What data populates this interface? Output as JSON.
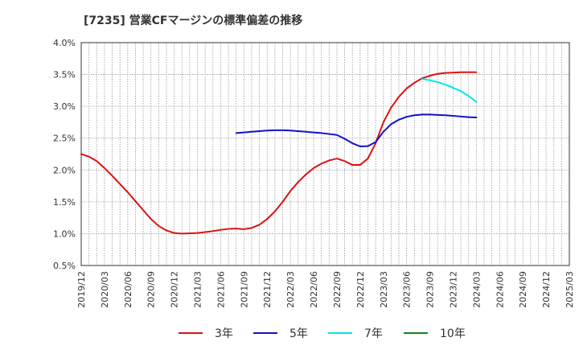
{
  "chart_data": {
    "type": "line",
    "title": "[7235]  営業CFマージンの標準偏差の推移",
    "xlabel": "",
    "ylabel": "",
    "ylim": [
      0.5,
      4.0
    ],
    "y_ticks": [
      "0.5%",
      "1.0%",
      "1.5%",
      "2.0%",
      "2.5%",
      "3.0%",
      "3.5%",
      "4.0%"
    ],
    "x_ticks": [
      "2019/12",
      "2020/03",
      "2020/06",
      "2020/09",
      "2020/12",
      "2021/03",
      "2021/06",
      "2021/09",
      "2021/12",
      "2022/03",
      "2022/06",
      "2022/09",
      "2022/12",
      "2023/03",
      "2023/06",
      "2023/09",
      "2023/12",
      "2024/03",
      "2024/06",
      "2024/09",
      "2024/12",
      "2025/03"
    ],
    "grid": true,
    "legend_position": "bottom",
    "series": [
      {
        "name": "3年",
        "color": "#dd1111",
        "x": [
          "2019/12",
          "2020/01",
          "2020/02",
          "2020/03",
          "2020/04",
          "2020/05",
          "2020/06",
          "2020/07",
          "2020/08",
          "2020/09",
          "2020/10",
          "2020/11",
          "2020/12",
          "2021/01",
          "2021/02",
          "2021/03",
          "2021/04",
          "2021/05",
          "2021/06",
          "2021/07",
          "2021/08",
          "2021/09",
          "2021/10",
          "2021/11",
          "2021/12",
          "2022/01",
          "2022/02",
          "2022/03",
          "2022/04",
          "2022/05",
          "2022/06",
          "2022/07",
          "2022/08",
          "2022/09",
          "2022/10",
          "2022/11",
          "2022/12",
          "2023/01",
          "2023/02",
          "2023/03",
          "2023/04",
          "2023/05",
          "2023/06",
          "2023/07",
          "2023/08",
          "2023/09",
          "2023/10",
          "2023/11",
          "2023/12",
          "2024/01",
          "2024/02",
          "2024/03"
        ],
        "values": [
          2.25,
          2.21,
          2.14,
          2.03,
          1.91,
          1.78,
          1.65,
          1.51,
          1.37,
          1.23,
          1.12,
          1.05,
          1.01,
          1.0,
          1.005,
          1.01,
          1.025,
          1.04,
          1.06,
          1.075,
          1.08,
          1.07,
          1.09,
          1.14,
          1.23,
          1.35,
          1.5,
          1.67,
          1.81,
          1.93,
          2.03,
          2.1,
          2.15,
          2.18,
          2.14,
          2.08,
          2.08,
          2.18,
          2.42,
          2.75,
          2.98,
          3.15,
          3.28,
          3.37,
          3.44,
          3.48,
          3.51,
          3.525,
          3.53,
          3.535,
          3.535,
          3.535
        ]
      },
      {
        "name": "5年",
        "color": "#1111cc",
        "x": [
          "2021/08",
          "2021/09",
          "2021/10",
          "2021/11",
          "2021/12",
          "2022/01",
          "2022/02",
          "2022/03",
          "2022/04",
          "2022/05",
          "2022/06",
          "2022/07",
          "2022/08",
          "2022/09",
          "2022/10",
          "2022/11",
          "2022/12",
          "2023/01",
          "2023/02",
          "2023/03",
          "2023/04",
          "2023/05",
          "2023/06",
          "2023/07",
          "2023/08",
          "2023/09",
          "2023/10",
          "2023/11",
          "2023/12",
          "2024/01",
          "2024/02",
          "2024/03"
        ],
        "values": [
          2.58,
          2.59,
          2.6,
          2.61,
          2.62,
          2.625,
          2.625,
          2.62,
          2.61,
          2.6,
          2.59,
          2.58,
          2.565,
          2.55,
          2.49,
          2.42,
          2.37,
          2.375,
          2.44,
          2.6,
          2.72,
          2.79,
          2.835,
          2.86,
          2.87,
          2.87,
          2.865,
          2.86,
          2.85,
          2.84,
          2.83,
          2.825
        ]
      },
      {
        "name": "7年",
        "color": "#00e5ee",
        "x": [
          "2023/08",
          "2023/09",
          "2023/10",
          "2023/11",
          "2023/12",
          "2024/01",
          "2024/02",
          "2024/03"
        ],
        "values": [
          3.43,
          3.41,
          3.38,
          3.34,
          3.29,
          3.24,
          3.16,
          3.07
        ]
      },
      {
        "name": "10年",
        "color": "#118811",
        "x": [],
        "values": []
      }
    ]
  }
}
